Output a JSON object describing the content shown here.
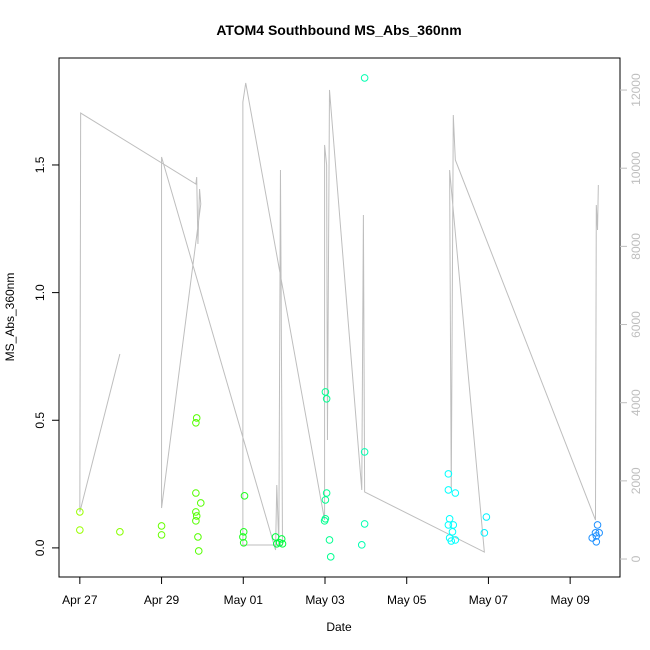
{
  "chart_data": {
    "type": "scatter",
    "title": "ATOM4 Southbound MS_Abs_360nm",
    "xlabel": "Date",
    "ylabel": "MS_Abs_360nm",
    "xlim": [
      -0.51,
      13.22
    ],
    "xticks": [
      {
        "value": 0,
        "label": "Apr 27"
      },
      {
        "value": 2,
        "label": "Apr 29"
      },
      {
        "value": 4,
        "label": "May 01"
      },
      {
        "value": 6,
        "label": "May 03"
      },
      {
        "value": 8,
        "label": "May 05"
      },
      {
        "value": 10,
        "label": "May 07"
      },
      {
        "value": 12,
        "label": "May 09"
      }
    ],
    "ylim": [
      -0.114,
      1.919
    ],
    "yticks": [
      {
        "value": 0,
        "label": "0.0"
      },
      0.5,
      {
        "value": 1,
        "label": "1.0"
      },
      1.5
    ],
    "y2lim": [
      -460,
      12820
    ],
    "y2ticks": [
      0,
      2000,
      4000,
      6000,
      8000,
      10000,
      12000
    ],
    "series": [
      {
        "type": "scatter",
        "x": [
          0,
          0,
          0.98,
          2.0,
          2.0,
          2.86,
          2.84,
          2.84,
          2.84,
          2.86,
          2.84,
          2.96,
          2.89,
          2.91,
          4.03,
          4.01,
          3.99,
          4.01,
          4.79,
          4.82,
          4.89,
          4.94,
          4.96,
          6.01,
          6.04,
          6.01,
          6.04,
          6.01,
          5.99,
          6.11,
          6.14,
          6.97,
          6.97,
          6.97,
          6.9,
          9.02,
          9.02,
          9.19,
          9.05,
          9.02,
          9.14,
          9.12,
          9.05,
          9.09,
          9.19,
          9.95,
          9.9,
          12.67,
          12.62,
          12.64,
          12.54,
          12.64,
          12.71
        ],
        "values": [
          0.141,
          0.07,
          0.063,
          0.086,
          0.051,
          0.509,
          0.49,
          0.215,
          0.141,
          0.125,
          0.106,
          0.176,
          0.043,
          -0.012,
          0.204,
          0.063,
          0.043,
          0.02,
          0.043,
          0.016,
          0.02,
          0.035,
          0.016,
          0.611,
          0.584,
          0.188,
          0.215,
          0.114,
          0.106,
          0.031,
          -0.035,
          1.841,
          0.376,
          0.094,
          0.012,
          0.29,
          0.227,
          0.215,
          0.114,
          0.09,
          0.09,
          0.063,
          0.039,
          0.027,
          0.031,
          0.121,
          0.059,
          0.09,
          0.059,
          0.047,
          0.039,
          0.024,
          0.059
        ],
        "colors": [
          "#99ff00",
          "#99ff00",
          "#88ff00",
          "#66ff00",
          "#66ff00",
          "#55ff00",
          "#55ff00",
          "#55ff00",
          "#55ff00",
          "#55ff00",
          "#55ff00",
          "#55ff00",
          "#55ff00",
          "#55ff00",
          "#22ff22",
          "#22ff22",
          "#22ff22",
          "#22ff22",
          "#00ff40",
          "#00ff40",
          "#00ff40",
          "#00ff40",
          "#00ff40",
          "#00ff90",
          "#00ff90",
          "#00ff90",
          "#00ff90",
          "#00ff90",
          "#00ff90",
          "#00ff90",
          "#00ff90",
          "#00ffb0",
          "#00ffb0",
          "#00ffb0",
          "#00ffb0",
          "#00ffff",
          "#00ffff",
          "#00ffff",
          "#00ffff",
          "#00ffff",
          "#00ffff",
          "#00ffff",
          "#00ffff",
          "#00ffff",
          "#00ffff",
          "#00f0ff",
          "#00f0ff",
          "#1e90ff",
          "#1e90ff",
          "#1e90ff",
          "#1e90ff",
          "#1e90ff",
          "#1e90ff"
        ]
      },
      {
        "type": "line",
        "axis": "y2",
        "color": "#bebebe",
        "x": [
          0.98,
          0,
          0.02,
          2.84,
          2.86,
          2.89,
          2.93,
          2.96,
          2.0,
          2.0,
          4.79,
          4.82,
          4.87,
          4.91,
          4.96,
          3.99,
          3.99,
          4.06,
          5.99,
          5.99,
          6.04,
          6.06,
          6.11,
          6.9,
          6.94,
          6.97,
          9.9,
          9.05,
          9.09,
          9.14,
          9.19,
          12.62,
          12.64,
          12.67,
          12.69
        ],
        "values": [
          5246,
          1203,
          11412,
          9595,
          9774,
          8060,
          9467,
          9083,
          1305,
          10288,
          230,
          1894,
          358,
          9953,
          358,
          358,
          11694,
          12181,
          998,
          10595,
          10083,
          3045,
          12002,
          1766,
          8803,
          1715,
          179,
          9953,
          1766,
          11361,
          10211,
          998,
          9058,
          8419,
          9569
        ]
      }
    ]
  }
}
